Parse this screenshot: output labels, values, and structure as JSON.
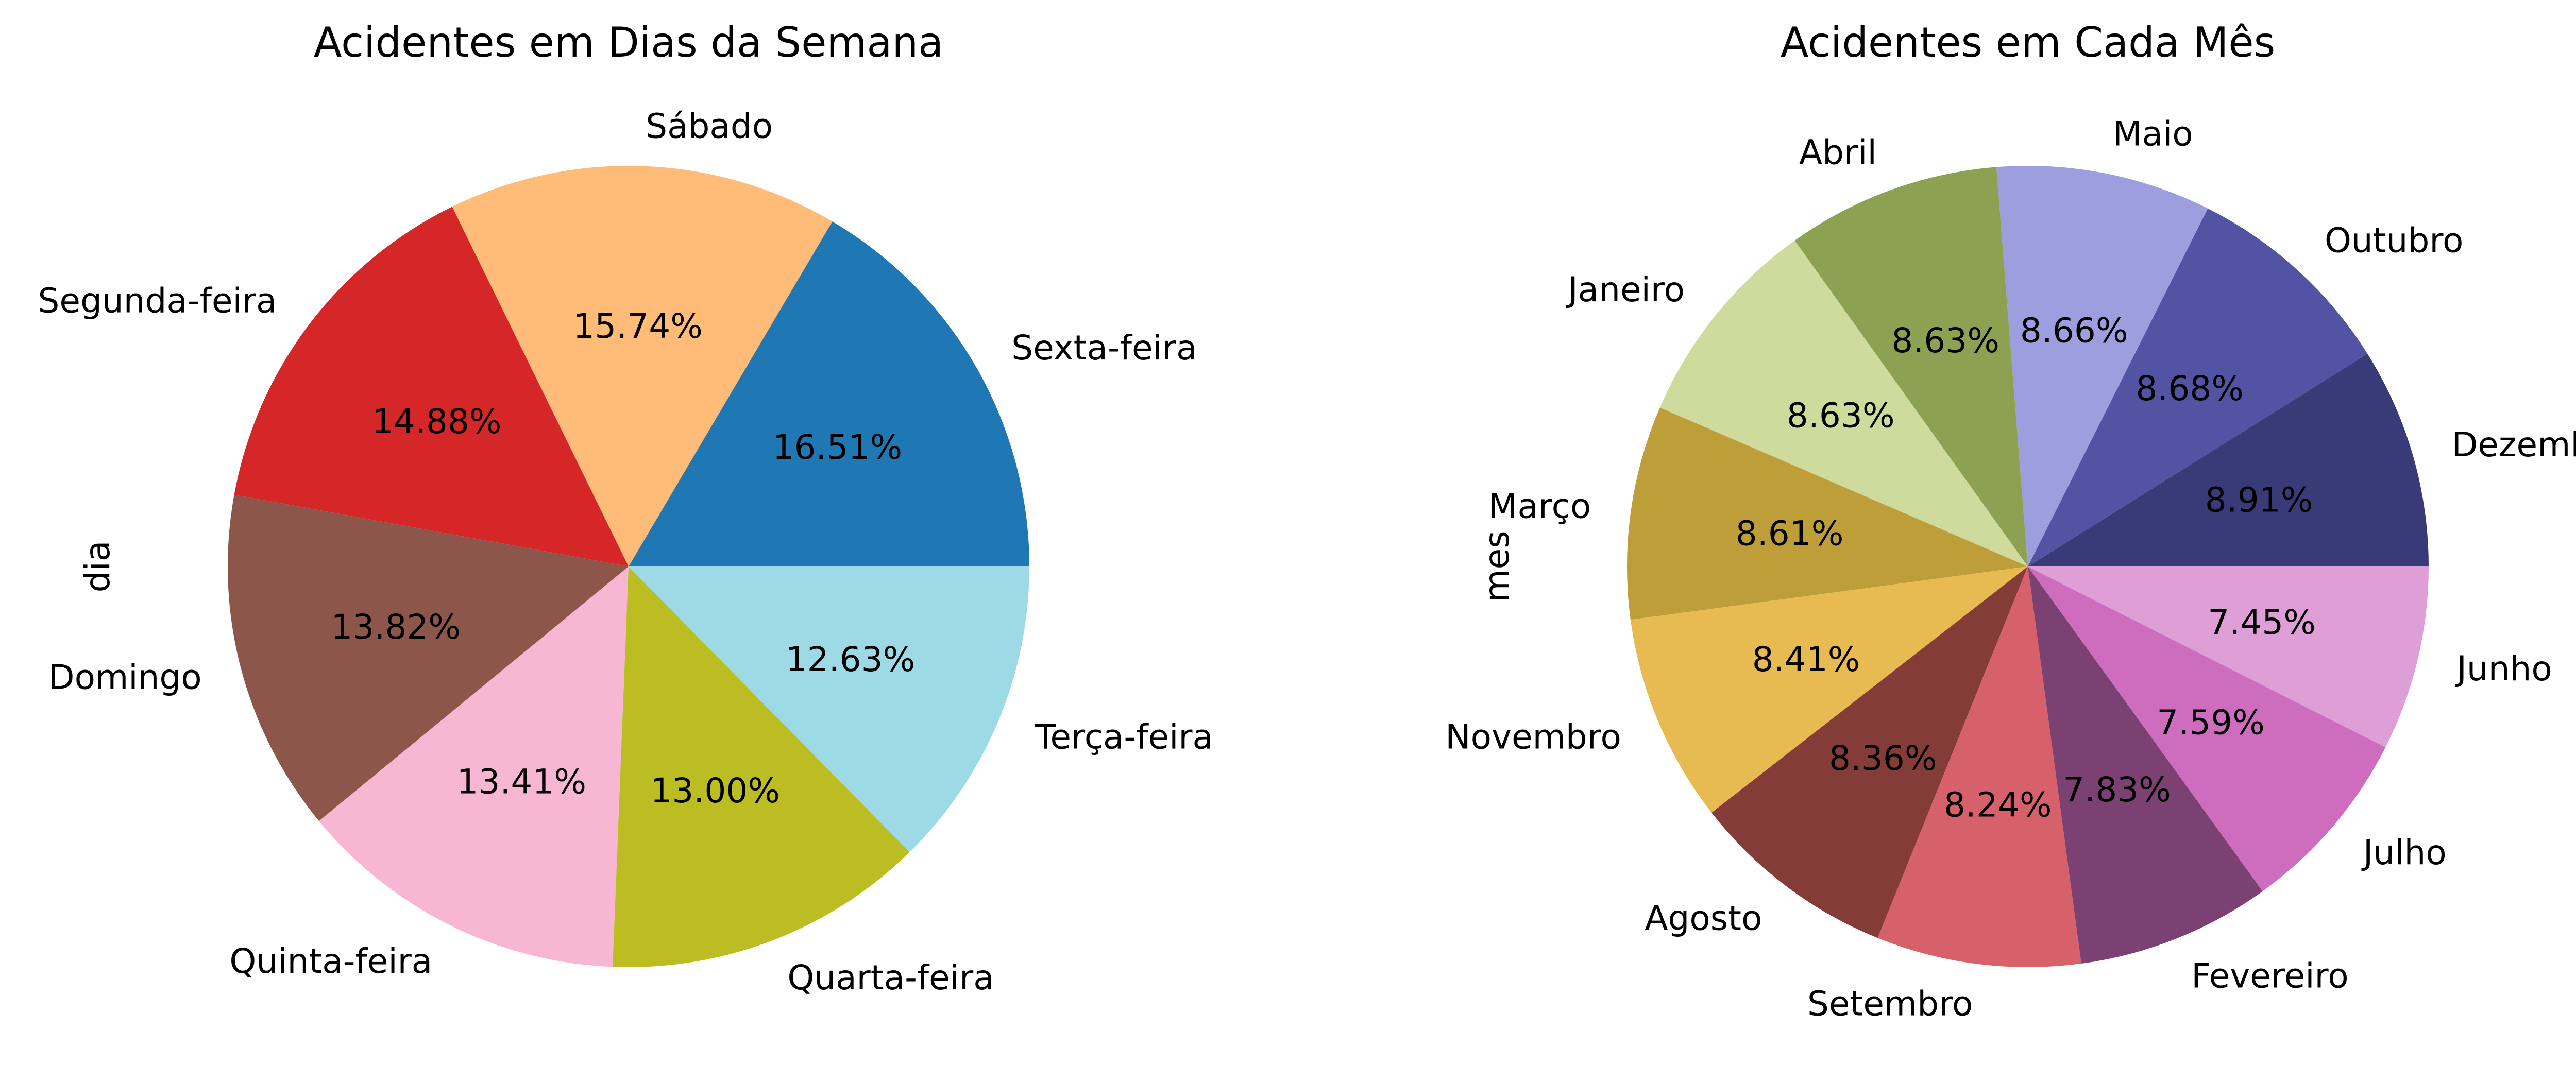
{
  "chart_data": [
    {
      "type": "pie",
      "title": "Acidentes em Dias da Semana",
      "ylabel": "dia",
      "start_angle_deg": 0,
      "direction": "counterclockwise",
      "slices": [
        {
          "label": "Sexta-feira",
          "value": 16.51,
          "pct_text": "16.51%",
          "color": "#1f77b4"
        },
        {
          "label": "Sábado",
          "value": 15.74,
          "pct_text": "15.74%",
          "color": "#ffbb78"
        },
        {
          "label": "Segunda-feira",
          "value": 14.88,
          "pct_text": "14.88%",
          "color": "#d62728"
        },
        {
          "label": "Domingo",
          "value": 13.82,
          "pct_text": "13.82%",
          "color": "#8c564b"
        },
        {
          "label": "Quinta-feira",
          "value": 13.41,
          "pct_text": "13.41%",
          "color": "#f7b6d2"
        },
        {
          "label": "Quarta-feira",
          "value": 13.0,
          "pct_text": "13.00%",
          "color": "#bcbd22"
        },
        {
          "label": "Terça-feira",
          "value": 12.63,
          "pct_text": "12.63%",
          "color": "#9edae5"
        }
      ]
    },
    {
      "type": "pie",
      "title": "Acidentes em Cada Mês",
      "ylabel": "mes",
      "start_angle_deg": 0,
      "direction": "counterclockwise",
      "slices": [
        {
          "label": "Dezembro",
          "value": 8.91,
          "pct_text": "8.91%",
          "color": "#393b79"
        },
        {
          "label": "Outubro",
          "value": 8.68,
          "pct_text": "8.68%",
          "color": "#5254a3"
        },
        {
          "label": "Maio",
          "value": 8.66,
          "pct_text": "8.66%",
          "color": "#9c9ede"
        },
        {
          "label": "Abril",
          "value": 8.63,
          "pct_text": "8.63%",
          "color": "#8ca252"
        },
        {
          "label": "Janeiro",
          "value": 8.63,
          "pct_text": "8.63%",
          "color": "#cedb9c"
        },
        {
          "label": "Março",
          "value": 8.61,
          "pct_text": "8.61%",
          "color": "#bd9e39"
        },
        {
          "label": "Novembro",
          "value": 8.41,
          "pct_text": "8.41%",
          "color": "#e7ba52"
        },
        {
          "label": "Agosto",
          "value": 8.36,
          "pct_text": "8.36%",
          "color": "#843c39"
        },
        {
          "label": "Setembro",
          "value": 8.24,
          "pct_text": "8.24%",
          "color": "#d6616b"
        },
        {
          "label": "Fevereiro",
          "value": 7.83,
          "pct_text": "7.83%",
          "color": "#7b4173"
        },
        {
          "label": "Julho",
          "value": 7.59,
          "pct_text": "7.59%",
          "color": "#ce6dbd"
        },
        {
          "label": "Junho",
          "value": 7.45,
          "pct_text": "7.45%",
          "color": "#de9ed6"
        }
      ]
    }
  ]
}
